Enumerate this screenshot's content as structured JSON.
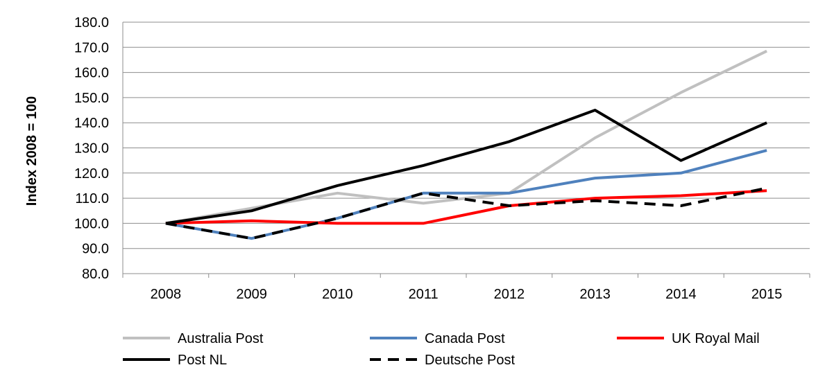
{
  "chart_data": {
    "type": "line",
    "title": "",
    "xlabel": "",
    "ylabel": "Index 2008 = 100",
    "categories": [
      "2008",
      "2009",
      "2010",
      "2011",
      "2012",
      "2013",
      "2014",
      "2015"
    ],
    "ylim": [
      80,
      180
    ],
    "yticks": [
      "80.0",
      "90.0",
      "100.0",
      "110.0",
      "120.0",
      "130.0",
      "140.0",
      "150.0",
      "160.0",
      "170.0",
      "180.0"
    ],
    "grid": true,
    "legend_position": "bottom",
    "series": [
      {
        "name": "Australia Post",
        "color": "#c0c0c0",
        "dash": "solid",
        "values": [
          100,
          106,
          112,
          108,
          112,
          134,
          152,
          168.5
        ]
      },
      {
        "name": "Canada Post",
        "color": "#4f81bd",
        "dash": "solid",
        "values": [
          100,
          94,
          102,
          112,
          112,
          118,
          120,
          129
        ]
      },
      {
        "name": "UK Royal Mail",
        "color": "#ff0000",
        "dash": "solid",
        "values": [
          100,
          101,
          100,
          100,
          107,
          110,
          111,
          113
        ]
      },
      {
        "name": "Post NL",
        "color": "#000000",
        "dash": "solid",
        "values": [
          100,
          105,
          115,
          123,
          132.5,
          145,
          125,
          140
        ]
      },
      {
        "name": "Deutsche Post",
        "color": "#000000",
        "dash": "dashed",
        "values": [
          100,
          94,
          102,
          112,
          107,
          109,
          107,
          114
        ]
      }
    ]
  }
}
